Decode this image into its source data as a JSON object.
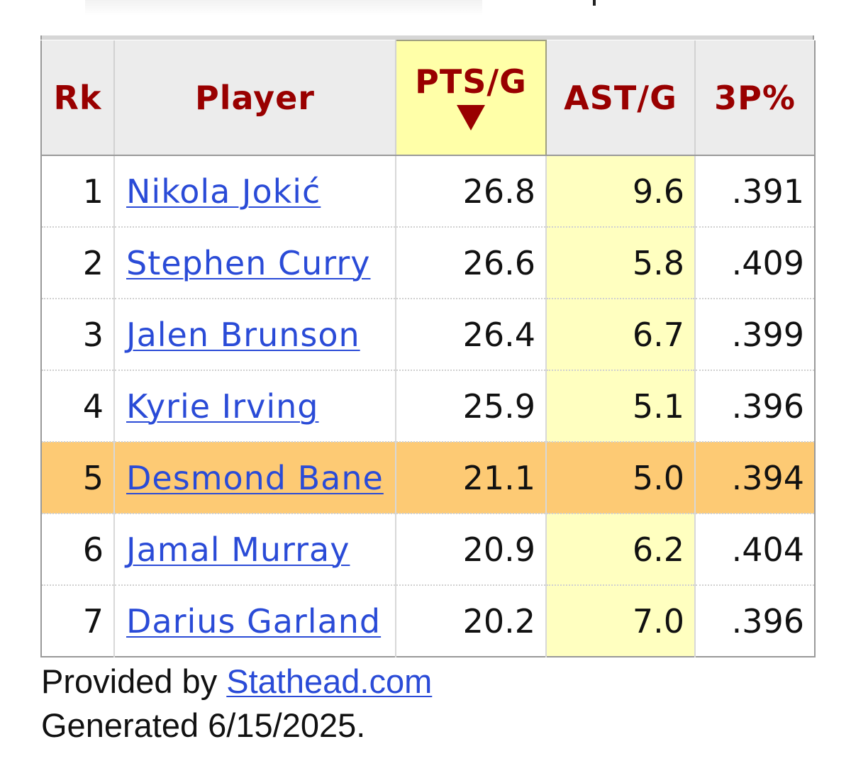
{
  "table": {
    "headers": {
      "rk": "Rk",
      "player": "Player",
      "pts": "PTS/G",
      "ast": "AST/G",
      "three": "3P%"
    },
    "sorted_column": "PTS/G",
    "sort_direction": "descending",
    "highlighted_row_rank": "5",
    "rows": [
      {
        "rk": "1",
        "player": "Nikola Jokić",
        "pts": "26.8",
        "ast": "9.6",
        "three": ".391"
      },
      {
        "rk": "2",
        "player": "Stephen Curry",
        "pts": "26.6",
        "ast": "5.8",
        "three": ".409"
      },
      {
        "rk": "3",
        "player": "Jalen Brunson",
        "pts": "26.4",
        "ast": "6.7",
        "three": ".399"
      },
      {
        "rk": "4",
        "player": "Kyrie Irving",
        "pts": "25.9",
        "ast": "5.1",
        "three": ".396"
      },
      {
        "rk": "5",
        "player": "Desmond Bane",
        "pts": "21.1",
        "ast": "5.0",
        "three": ".394"
      },
      {
        "rk": "6",
        "player": "Jamal Murray",
        "pts": "20.9",
        "ast": "6.2",
        "three": ".404"
      },
      {
        "rk": "7",
        "player": "Darius Garland",
        "pts": "20.2",
        "ast": "7.0",
        "three": ".396"
      }
    ]
  },
  "footer": {
    "provided_prefix": "Provided by ",
    "provider_link": "Stathead.com",
    "generated": "Generated 6/15/2025."
  },
  "colors": {
    "header_text": "#990000",
    "link": "#2a4bd7",
    "sorted_header_bg": "#ffffa8",
    "highlight_row_bg": "#fdca74",
    "ast_column_bg": "#ffffc0"
  }
}
